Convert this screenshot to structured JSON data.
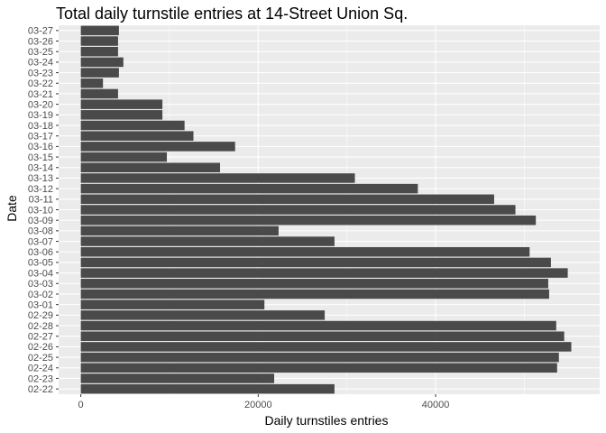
{
  "chart_data": {
    "type": "bar",
    "orientation": "horizontal",
    "title": "Total daily turnstile entries at 14-Street Union Sq.",
    "xlabel": "Daily turnstiles entries",
    "ylabel": "Date",
    "xlim": [
      -2500,
      58500
    ],
    "xticks": [
      0,
      20000,
      40000
    ],
    "grid": true,
    "bar_color": "#4a4a4a",
    "panel_color": "#ebebeb",
    "categories": [
      "02-22",
      "02-23",
      "02-24",
      "02-25",
      "02-26",
      "02-27",
      "02-28",
      "02-29",
      "03-01",
      "03-02",
      "03-03",
      "03-04",
      "03-05",
      "03-06",
      "03-07",
      "03-08",
      "03-09",
      "03-10",
      "03-11",
      "03-12",
      "03-13",
      "03-14",
      "03-15",
      "03-16",
      "03-17",
      "03-18",
      "03-19",
      "03-20",
      "03-21",
      "03-22",
      "03-23",
      "03-24",
      "03-25",
      "03-26",
      "03-27"
    ],
    "values": [
      28600,
      21800,
      53700,
      53900,
      55300,
      54500,
      53600,
      27500,
      20700,
      52800,
      52700,
      54900,
      53000,
      50600,
      28600,
      22300,
      51300,
      49000,
      46600,
      38000,
      30900,
      15700,
      9700,
      17400,
      12700,
      11700,
      9200,
      9200,
      4200,
      2500,
      4300,
      4800,
      4200,
      4200,
      4300
    ]
  }
}
